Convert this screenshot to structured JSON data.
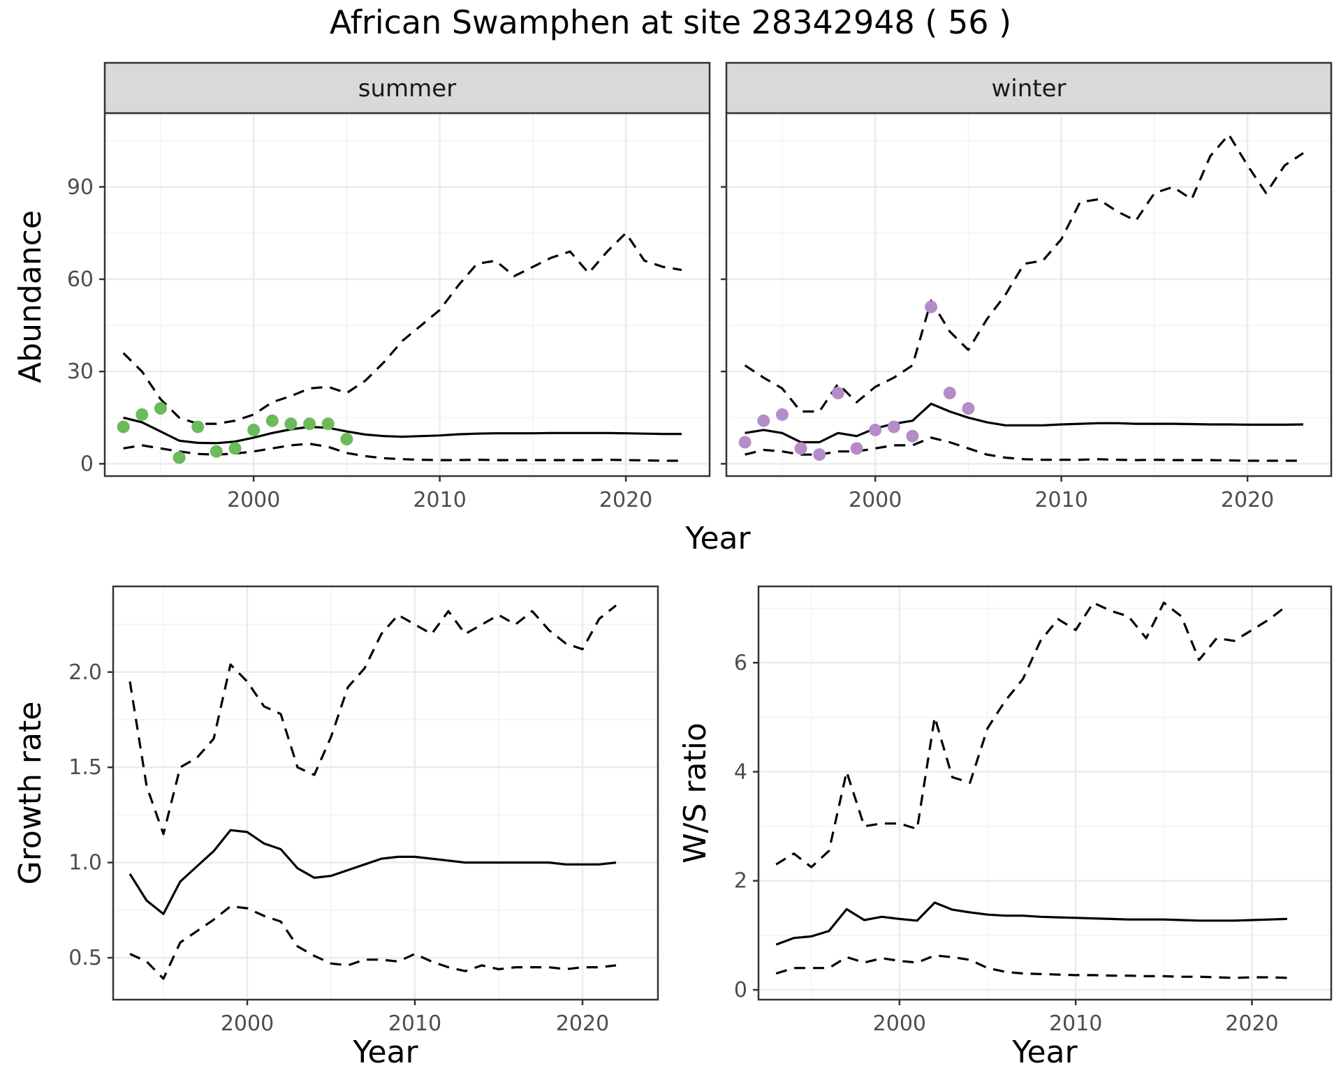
{
  "title": "African Swamphen at site 28342948 ( 56 )",
  "colors": {
    "summer_points": "#6bbb5a",
    "winter_points": "#b48cc8",
    "line": "#000000",
    "grid_major": "#ebebeb",
    "grid_minor": "#f3f3f3",
    "strip_bg": "#d9d9d9",
    "panel_border": "#333333"
  },
  "chart_data": [
    {
      "type": "line",
      "facet": "summer",
      "xlabel": "Year",
      "ylabel": "Abundance",
      "xlim": [
        1992,
        2024.5
      ],
      "ylim": [
        -4,
        114
      ],
      "xticks": [
        2000,
        2010,
        2020
      ],
      "yticks": [
        0,
        30,
        60,
        90
      ],
      "grid": true,
      "x": [
        1993,
        1994,
        1995,
        1996,
        1997,
        1998,
        1999,
        2000,
        2001,
        2002,
        2003,
        2004,
        2005,
        2006,
        2007,
        2008,
        2009,
        2010,
        2011,
        2012,
        2013,
        2014,
        2015,
        2016,
        2017,
        2018,
        2019,
        2020,
        2021,
        2022,
        2023
      ],
      "series": [
        {
          "role": "mean",
          "style": "solid",
          "values": [
            15,
            13.5,
            10.5,
            7.5,
            6.8,
            6.7,
            7.2,
            8.5,
            10,
            11.2,
            12,
            11.7,
            10.5,
            9.5,
            9,
            8.8,
            9,
            9.2,
            9.6,
            9.8,
            9.9,
            9.9,
            9.9,
            10,
            10,
            10,
            10,
            9.9,
            9.8,
            9.7,
            9.7
          ]
        },
        {
          "role": "upper",
          "style": "dashed",
          "values": [
            36,
            30,
            21,
            15,
            13,
            13,
            14,
            16,
            20,
            22,
            24.5,
            25,
            23,
            27,
            33,
            40,
            45,
            50,
            58,
            65,
            66,
            61,
            64,
            67,
            69,
            62,
            69,
            75,
            66,
            64,
            63
          ]
        },
        {
          "role": "lower",
          "style": "dashed",
          "values": [
            5,
            6,
            5,
            4,
            3.2,
            3,
            3.3,
            4,
            5,
            6,
            6.5,
            5.5,
            3.5,
            2.5,
            1.8,
            1.5,
            1.3,
            1.2,
            1.2,
            1.3,
            1.2,
            1.2,
            1.2,
            1.2,
            1.2,
            1.2,
            1.3,
            1.2,
            1.1,
            1,
            1
          ]
        }
      ],
      "points": {
        "x": [
          1993,
          1994,
          1995,
          1996,
          1997,
          1998,
          1999,
          2000,
          2001,
          2002,
          2003,
          2004,
          2005
        ],
        "y": [
          12,
          16,
          18,
          2,
          12,
          4,
          5,
          11,
          14,
          13,
          13,
          13,
          8
        ]
      }
    },
    {
      "type": "line",
      "facet": "winter",
      "xlabel": "Year",
      "xlim": [
        1992,
        2024.5
      ],
      "ylim": [
        -4,
        114
      ],
      "xticks": [
        2000,
        2010,
        2020
      ],
      "yticks": [
        0,
        30,
        60,
        90
      ],
      "grid": true,
      "x": [
        1993,
        1994,
        1995,
        1996,
        1997,
        1998,
        1999,
        2000,
        2001,
        2002,
        2003,
        2004,
        2005,
        2006,
        2007,
        2008,
        2009,
        2010,
        2011,
        2012,
        2013,
        2014,
        2015,
        2016,
        2017,
        2018,
        2019,
        2020,
        2021,
        2022,
        2023
      ],
      "series": [
        {
          "role": "mean",
          "style": "solid",
          "values": [
            10,
            11,
            10,
            7,
            7,
            10,
            9,
            11.5,
            13,
            14,
            19.5,
            17,
            15,
            13.5,
            12.5,
            12.5,
            12.5,
            12.8,
            13,
            13.2,
            13.2,
            13,
            13,
            13,
            12.9,
            12.8,
            12.8,
            12.7,
            12.7,
            12.7,
            12.8
          ]
        },
        {
          "role": "upper",
          "style": "dashed",
          "values": [
            32,
            28,
            24.5,
            17,
            17,
            26,
            20,
            25,
            28,
            32,
            53,
            43,
            37,
            47,
            55,
            65,
            66,
            73,
            85,
            86,
            82,
            79,
            88,
            90,
            86,
            100,
            107,
            97,
            88,
            97,
            101
          ]
        },
        {
          "role": "lower",
          "style": "dashed",
          "values": [
            3,
            4.5,
            4,
            3,
            3,
            4,
            4,
            5,
            6,
            6,
            8.5,
            7,
            5,
            3,
            2,
            1.5,
            1.3,
            1.3,
            1.3,
            1.5,
            1.3,
            1.2,
            1.3,
            1.2,
            1.2,
            1.2,
            1.1,
            1,
            1,
            1,
            1
          ]
        }
      ],
      "points": {
        "x": [
          1993,
          1994,
          1995,
          1996,
          1997,
          1998,
          1999,
          2000,
          2001,
          2002,
          2003,
          2004,
          2005
        ],
        "y": [
          7,
          14,
          16,
          5,
          3,
          23,
          5,
          11,
          12,
          9,
          51,
          23,
          18
        ]
      }
    },
    {
      "type": "line",
      "xlabel": "Year",
      "ylabel": "Growth rate",
      "xlim": [
        1992,
        2024.5
      ],
      "ylim": [
        0.28,
        2.45
      ],
      "xticks": [
        2000,
        2010,
        2020
      ],
      "yticks": [
        0.5,
        1.0,
        1.5,
        2.0
      ],
      "ytick_labels": [
        "0.5",
        "1.0",
        "1.5",
        "2.0"
      ],
      "grid": true,
      "x": [
        1993,
        1994,
        1995,
        1996,
        1997,
        1998,
        1999,
        2000,
        2001,
        2002,
        2003,
        2004,
        2005,
        2006,
        2007,
        2008,
        2009,
        2010,
        2011,
        2012,
        2013,
        2014,
        2015,
        2016,
        2017,
        2018,
        2019,
        2020,
        2021,
        2022
      ],
      "series": [
        {
          "role": "mean",
          "style": "solid",
          "values": [
            0.94,
            0.8,
            0.73,
            0.9,
            0.98,
            1.06,
            1.17,
            1.16,
            1.1,
            1.07,
            0.97,
            0.92,
            0.93,
            0.96,
            0.99,
            1.02,
            1.03,
            1.03,
            1.02,
            1.01,
            1.0,
            1.0,
            1.0,
            1.0,
            1.0,
            1.0,
            0.99,
            0.99,
            0.99,
            1.0
          ]
        },
        {
          "role": "upper",
          "style": "dashed",
          "values": [
            1.95,
            1.4,
            1.15,
            1.5,
            1.55,
            1.65,
            2.04,
            1.95,
            1.82,
            1.78,
            1.5,
            1.46,
            1.66,
            1.92,
            2.02,
            2.2,
            2.3,
            2.25,
            2.2,
            2.32,
            2.2,
            2.25,
            2.3,
            2.25,
            2.32,
            2.22,
            2.15,
            2.12,
            2.28,
            2.35
          ]
        },
        {
          "role": "lower",
          "style": "dashed",
          "values": [
            0.52,
            0.48,
            0.39,
            0.58,
            0.64,
            0.7,
            0.77,
            0.76,
            0.72,
            0.69,
            0.56,
            0.51,
            0.47,
            0.46,
            0.49,
            0.49,
            0.48,
            0.52,
            0.48,
            0.45,
            0.43,
            0.46,
            0.44,
            0.45,
            0.45,
            0.45,
            0.44,
            0.45,
            0.45,
            0.46
          ]
        }
      ]
    },
    {
      "type": "line",
      "xlabel": "Year",
      "ylabel": "W/S ratio",
      "xlim": [
        1992,
        2024.5
      ],
      "ylim": [
        -0.18,
        7.4
      ],
      "xticks": [
        2000,
        2010,
        2020
      ],
      "yticks": [
        0,
        2,
        4,
        6
      ],
      "grid": true,
      "x": [
        1993,
        1994,
        1995,
        1996,
        1997,
        1998,
        1999,
        2000,
        2001,
        2002,
        2003,
        2004,
        2005,
        2006,
        2007,
        2008,
        2009,
        2010,
        2011,
        2012,
        2013,
        2014,
        2015,
        2016,
        2017,
        2018,
        2019,
        2020,
        2021,
        2022
      ],
      "series": [
        {
          "role": "mean",
          "style": "solid",
          "values": [
            0.83,
            0.95,
            0.98,
            1.08,
            1.48,
            1.28,
            1.34,
            1.3,
            1.27,
            1.6,
            1.47,
            1.42,
            1.38,
            1.36,
            1.36,
            1.34,
            1.33,
            1.32,
            1.31,
            1.3,
            1.29,
            1.29,
            1.29,
            1.28,
            1.27,
            1.27,
            1.27,
            1.28,
            1.29,
            1.3
          ]
        },
        {
          "role": "upper",
          "style": "dashed",
          "values": [
            2.3,
            2.5,
            2.25,
            2.55,
            4.0,
            3.0,
            3.05,
            3.05,
            2.95,
            5.0,
            3.9,
            3.8,
            4.8,
            5.3,
            5.7,
            6.4,
            6.8,
            6.6,
            7.1,
            6.95,
            6.85,
            6.45,
            7.1,
            6.85,
            6.05,
            6.45,
            6.4,
            6.6,
            6.8,
            7.05
          ]
        },
        {
          "role": "lower",
          "style": "dashed",
          "values": [
            0.3,
            0.4,
            0.4,
            0.4,
            0.6,
            0.5,
            0.58,
            0.53,
            0.5,
            0.63,
            0.6,
            0.55,
            0.4,
            0.33,
            0.3,
            0.29,
            0.28,
            0.27,
            0.27,
            0.26,
            0.26,
            0.25,
            0.25,
            0.24,
            0.24,
            0.23,
            0.22,
            0.23,
            0.23,
            0.22
          ]
        }
      ]
    }
  ]
}
